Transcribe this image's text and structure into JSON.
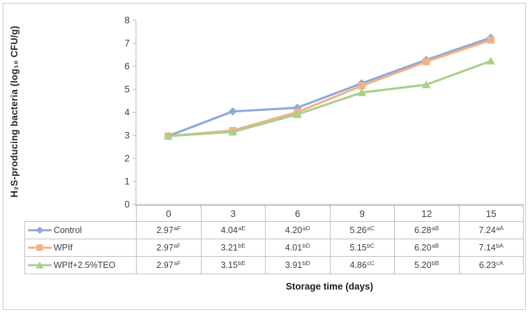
{
  "panel": {
    "background": "#ffffff",
    "border_color": "#c9c9c9",
    "axis_color": "#bfbfbf",
    "table_border_color": "#bfbfbf",
    "text_color": "#404040"
  },
  "chart_data": {
    "type": "line",
    "title": "",
    "ylabel": "H₂S-producing bacteria (log₁₀ CFU/g)",
    "xlabel": "Storage time (days)",
    "categories": [
      "0",
      "3",
      "6",
      "9",
      "12",
      "15"
    ],
    "ylim": [
      0,
      8
    ],
    "ytick_step": 1,
    "grid": false,
    "legend_position": "table-left",
    "series": [
      {
        "name": "Control",
        "color": "#8ea9db",
        "marker": "diamond",
        "values": [
          2.97,
          4.04,
          4.2,
          5.26,
          6.28,
          7.24
        ],
        "display": [
          "2.97",
          "4.04",
          "4.20",
          "5.26",
          "6.28",
          "7.24"
        ],
        "superscripts": [
          "aF",
          "aE",
          "aD",
          "aC",
          "aB",
          "aA"
        ]
      },
      {
        "name": "WPIf",
        "color": "#f4b183",
        "marker": "square",
        "values": [
          2.97,
          3.21,
          4.01,
          5.15,
          6.2,
          7.14
        ],
        "display": [
          "2.97",
          "3.21",
          "4.01",
          "5.15",
          "6.20",
          "7.14"
        ],
        "superscripts": [
          "aF",
          "bE",
          "bD",
          "bC",
          "aB",
          "bA"
        ]
      },
      {
        "name": "WPIf+2.5%TEO",
        "color": "#a8d08d",
        "marker": "triangle",
        "values": [
          2.97,
          3.15,
          3.91,
          4.86,
          5.2,
          6.23
        ],
        "display": [
          "2.97",
          "3.15",
          "3.91",
          "4.86",
          "5.20",
          "6.23"
        ],
        "superscripts": [
          "aF",
          "bE",
          "bD",
          "cC",
          "bB",
          "cA"
        ]
      }
    ]
  }
}
